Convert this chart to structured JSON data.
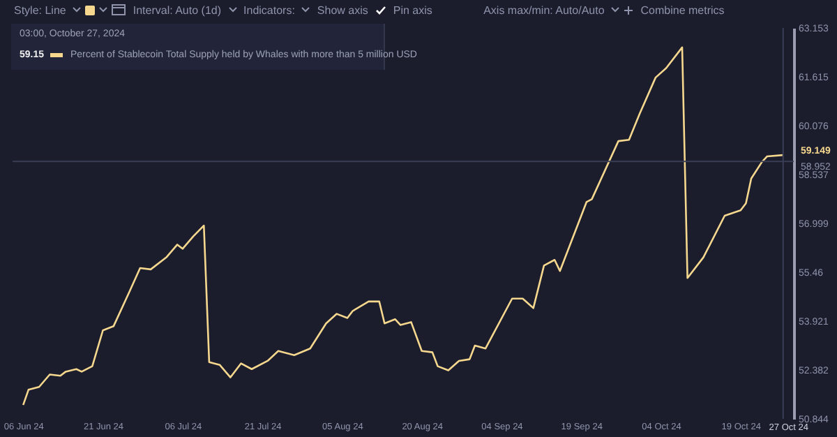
{
  "chart_data": {
    "type": "line",
    "x": [
      "2024-06-06",
      "2024-06-07",
      "2024-06-09",
      "2024-06-11",
      "2024-06-13",
      "2024-06-14",
      "2024-06-16",
      "2024-06-17",
      "2024-06-19",
      "2024-06-21",
      "2024-06-23",
      "2024-06-26",
      "2024-06-28",
      "2024-06-30",
      "2024-07-03",
      "2024-07-05",
      "2024-07-06",
      "2024-07-08",
      "2024-07-10",
      "2024-07-11",
      "2024-07-13",
      "2024-07-15",
      "2024-07-17",
      "2024-07-19",
      "2024-07-22",
      "2024-07-24",
      "2024-07-27",
      "2024-07-30",
      "2024-08-02",
      "2024-08-04",
      "2024-08-06",
      "2024-08-07",
      "2024-08-10",
      "2024-08-12",
      "2024-08-13",
      "2024-08-15",
      "2024-08-16",
      "2024-08-18",
      "2024-08-20",
      "2024-08-22",
      "2024-08-23",
      "2024-08-25",
      "2024-08-27",
      "2024-08-29",
      "2024-08-30",
      "2024-09-01",
      "2024-09-06",
      "2024-09-08",
      "2024-09-10",
      "2024-09-12",
      "2024-09-14",
      "2024-09-15",
      "2024-09-20",
      "2024-09-21",
      "2024-09-26",
      "2024-09-28",
      "2024-09-30",
      "2024-10-03",
      "2024-10-05",
      "2024-10-08",
      "2024-10-09",
      "2024-10-12",
      "2024-10-16",
      "2024-10-19",
      "2024-10-20",
      "2024-10-21",
      "2024-10-23",
      "2024-10-24",
      "2024-10-27"
    ],
    "series": [
      {
        "name": "Percent of Stablecoin Total Supply held by Whales with more than 5 million USD",
        "color": "#f5d78e",
        "values": [
          51.28,
          51.76,
          51.85,
          52.24,
          52.2,
          52.33,
          52.41,
          52.33,
          52.5,
          53.63,
          53.76,
          54.85,
          55.59,
          55.55,
          55.94,
          56.33,
          56.2,
          56.59,
          56.93,
          52.63,
          52.54,
          52.15,
          52.59,
          52.41,
          52.67,
          52.98,
          52.85,
          53.06,
          53.85,
          54.15,
          54.02,
          54.24,
          54.54,
          54.54,
          53.85,
          53.98,
          53.8,
          53.89,
          52.98,
          52.94,
          52.5,
          52.37,
          52.67,
          52.72,
          53.15,
          53.06,
          54.63,
          54.63,
          54.33,
          55.67,
          55.85,
          55.5,
          57.67,
          57.76,
          59.59,
          59.63,
          60.45,
          61.59,
          61.89,
          62.54,
          55.28,
          55.93,
          57.24,
          57.41,
          57.63,
          58.41,
          58.93,
          59.11,
          59.149
        ]
      }
    ],
    "xlim": [
      "2024-06-04",
      "2024-10-29"
    ],
    "xticks": [
      {
        "value": "2024-06-06",
        "label": "06 Jun 24"
      },
      {
        "value": "2024-06-21",
        "label": "21 Jun 24"
      },
      {
        "value": "2024-07-06",
        "label": "06 Jul 24"
      },
      {
        "value": "2024-07-21",
        "label": "21 Jul 24"
      },
      {
        "value": "2024-08-05",
        "label": "05 Aug 24"
      },
      {
        "value": "2024-08-20",
        "label": "20 Aug 24"
      },
      {
        "value": "2024-09-04",
        "label": "04 Sep 24"
      },
      {
        "value": "2024-09-19",
        "label": "19 Sep 24"
      },
      {
        "value": "2024-10-04",
        "label": "04 Oct 24"
      },
      {
        "value": "2024-10-19",
        "label": "19 Oct 24"
      }
    ],
    "ylim": [
      50.844,
      63.153
    ],
    "yticks": [
      50.844,
      52.382,
      53.921,
      55.46,
      56.999,
      58.537,
      60.076,
      61.615,
      63.153
    ],
    "ref_lines": [
      {
        "axis": "y",
        "value": 58.952,
        "label": "58.952",
        "color": "#3a3e55"
      },
      {
        "axis": "x",
        "value": "2024-10-27",
        "label": "27 Oct 24",
        "color": "#3a3e55"
      }
    ],
    "annotations": [
      "Style: Line",
      "Interval: Auto (1d)",
      "Indicators:",
      "Show axis",
      "Pin axis",
      "Axis max/min: Auto/Auto",
      "Combine metrics",
      "03:00, October 27, 2024",
      "59.15",
      {
        "text": "59.149",
        "x": "2024-10-27",
        "y": 59.149
      }
    ],
    "legend": "top left",
    "grid": false
  }
}
